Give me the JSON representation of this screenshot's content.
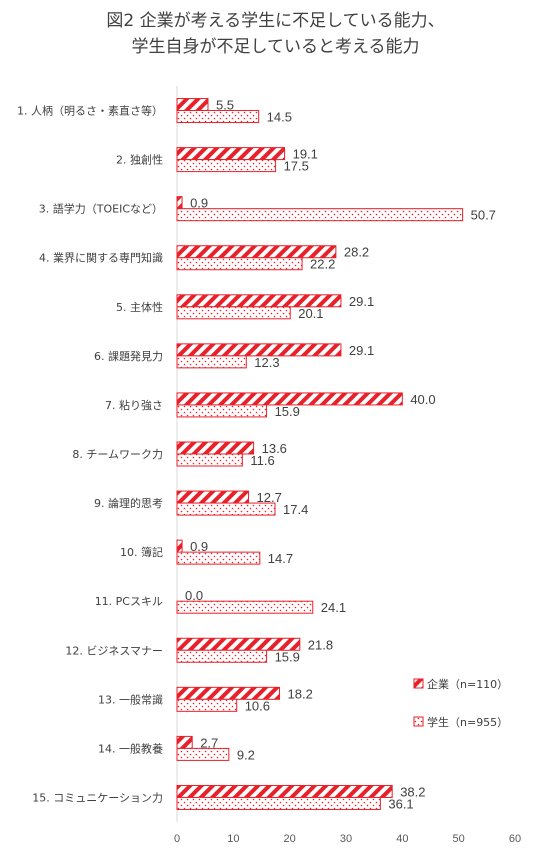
{
  "chart_data": {
    "type": "bar",
    "orientation": "horizontal",
    "title_lines": [
      "図2 企業が考える学生に不足している能力、",
      "学生自身が不足していると考える能力"
    ],
    "categories": [
      "1. 人柄（明るさ・素直さ等）",
      "2. 独創性",
      "3. 語学力（TOEICなど）",
      "4. 業界に関する専門知識",
      "5. 主体性",
      "6. 課題発見力",
      "7. 粘り強さ",
      "8. チームワーク力",
      "9. 論理的思考",
      "10. 簿記",
      "11. PCスキル",
      "12. ビジネスマナー",
      "13. 一般常識",
      "14. 一般教養",
      "15. コミュニケーション力"
    ],
    "series": [
      {
        "name": "企業（n=110）",
        "values": [
          5.5,
          19.1,
          0.9,
          28.2,
          29.1,
          29.1,
          40.0,
          13.6,
          12.7,
          0.9,
          0.0,
          21.8,
          18.2,
          2.7,
          38.2
        ],
        "labels": [
          "5.5",
          "19.1",
          "0.9",
          "28.2",
          "29.1",
          "29.1",
          "40.0",
          "13.6",
          "12.7",
          "0.9",
          "0.0",
          "21.8",
          "18.2",
          "2.7",
          "38.2"
        ]
      },
      {
        "name": "学生（n=955）",
        "values": [
          14.5,
          17.5,
          50.7,
          22.2,
          20.1,
          12.3,
          15.9,
          11.6,
          17.4,
          14.7,
          24.1,
          15.9,
          10.6,
          9.2,
          36.1
        ],
        "labels": [
          "14.5",
          "17.5",
          "50.7",
          "22.2",
          "20.1",
          "12.3",
          "15.9",
          "11.6",
          "17.4",
          "14.7",
          "24.1",
          "15.9",
          "10.6",
          "9.2",
          "36.1"
        ]
      }
    ],
    "xlim": [
      0,
      60
    ],
    "x_ticks": [
      "0",
      "10",
      "20",
      "30",
      "40",
      "50",
      "60"
    ],
    "grid": false,
    "legend_position": "right",
    "colors": {
      "company": "#e8202a",
      "student": "#e8202a",
      "axis": "#d9d9d9",
      "text": "#404040"
    }
  }
}
